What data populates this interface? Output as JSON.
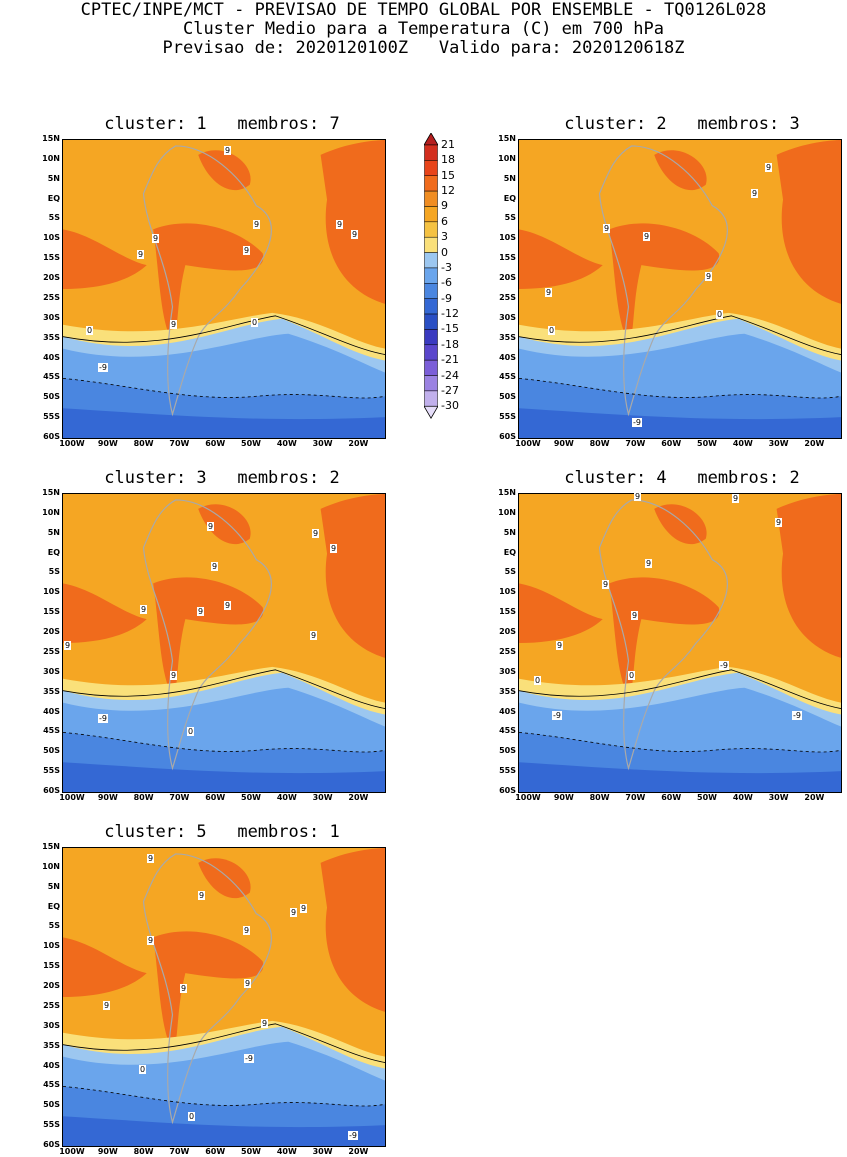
{
  "header": {
    "line1": "CPTEC/INPE/MCT - PREVISAO DE TEMPO GLOBAL POR ENSEMBLE - TQ0126L028",
    "line2": "Cluster Medio para a Temperatura (C) em 700 hPa",
    "line3": "Previsao de: 2020120100Z   Valido para: 2020120618Z"
  },
  "panels": [
    {
      "title": "cluster: 1   membros: 7",
      "contours": [
        "9",
        "9",
        "9",
        "9",
        "9",
        "9",
        "9",
        "9",
        "0",
        "0",
        "-9"
      ]
    },
    {
      "title": "cluster: 2   membros: 3",
      "contours": [
        "9",
        "9",
        "9",
        "9",
        "9",
        "9",
        "0",
        "0",
        "-9"
      ]
    },
    {
      "title": "cluster: 3   membros: 2",
      "contours": [
        "9",
        "9",
        "9",
        "9",
        "9",
        "9",
        "9",
        "9",
        "9",
        "9",
        "0",
        "-9"
      ]
    },
    {
      "title": "cluster: 4   membros: 2",
      "contours": [
        "9",
        "9",
        "9",
        "9",
        "9",
        "9",
        "9",
        "0",
        "0",
        "-9",
        "-9",
        "-9"
      ]
    },
    {
      "title": "cluster: 5   membros: 1",
      "contours": [
        "9",
        "9",
        "9",
        "9",
        "9",
        "9",
        "9",
        "9",
        "9",
        "9",
        "0",
        "0",
        "-9",
        "-9"
      ]
    }
  ],
  "lat_labels": [
    "15N",
    "10N",
    "5N",
    "EQ",
    "5S",
    "10S",
    "15S",
    "20S",
    "25S",
    "30S",
    "35S",
    "40S",
    "45S",
    "50S",
    "55S",
    "60S"
  ],
  "lon_labels": [
    "100W",
    "90W",
    "80W",
    "70W",
    "60W",
    "50W",
    "40W",
    "30W",
    "20W"
  ],
  "colorbar": {
    "levels": [
      "21",
      "18",
      "15",
      "12",
      "9",
      "6",
      "3",
      "0",
      "-3",
      "-6",
      "-9",
      "-12",
      "-15",
      "-18",
      "-21",
      "-24",
      "-27",
      "-30"
    ],
    "colors": [
      "#b51f1f",
      "#d32e1e",
      "#e8441a",
      "#f06b1c",
      "#f08d22",
      "#f5a623",
      "#f5c242",
      "#fae07a",
      "#9cc7f0",
      "#6aa5ec",
      "#4a86e0",
      "#3468d4",
      "#2a4fc4",
      "#3a3ac0",
      "#5a46cc",
      "#7b5ed8",
      "#9b82e2",
      "#c1b0ec",
      "#e6defa"
    ]
  }
}
